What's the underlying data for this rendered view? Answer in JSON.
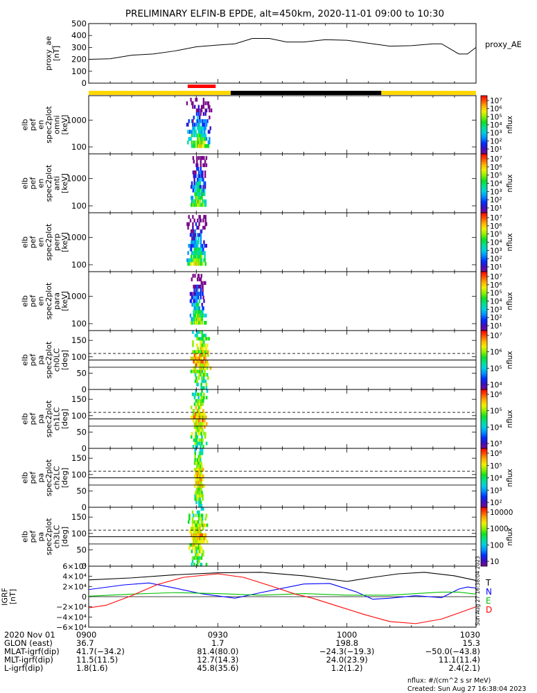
{
  "title": "PRELIMINARY ELFIN-B EPDE, alt=450km, 2020-11-01 09:00 to 10:30",
  "colors": {
    "fg": "#000000",
    "ygg_yellow": "#FFD700",
    "ygg_black": "#000000",
    "red_marker": "#FF0000",
    "T": "#000000",
    "N": "#0000FF",
    "E": "#00C000",
    "D": "#FF0000"
  },
  "colorbar_colors": [
    "#7a0a8a",
    "#3a10c0",
    "#0030ff",
    "#0090ff",
    "#00d0e0",
    "#00e090",
    "#10e020",
    "#90f000",
    "#f0f000",
    "#ffb000",
    "#ff5000",
    "#ff0000"
  ],
  "chart_data": [
    {
      "id": "proxy_ae",
      "type": "line",
      "ylabel": [
        "proxy_ae",
        "[nT]"
      ],
      "side_label": "proxy_AE",
      "yticks": [
        "500",
        "400",
        "300",
        "200",
        "100",
        "0"
      ],
      "ylim": [
        0,
        500
      ],
      "x": [
        0,
        5,
        10,
        15,
        20,
        25,
        30,
        34,
        38,
        42,
        46,
        50,
        55,
        60,
        65,
        70,
        75,
        80,
        82,
        86,
        88,
        90
      ],
      "values": [
        200,
        205,
        235,
        245,
        270,
        305,
        320,
        330,
        375,
        375,
        345,
        345,
        365,
        360,
        335,
        310,
        315,
        330,
        330,
        245,
        245,
        300
      ]
    },
    {
      "id": "orbit_bar",
      "type": "bar",
      "segments": [
        {
          "from": 0,
          "to": 33,
          "color": "yellow"
        },
        {
          "from": 33,
          "to": 68,
          "color": "black"
        },
        {
          "from": 68,
          "to": 90,
          "color": "yellow"
        }
      ],
      "science_zone": [
        23,
        29.5
      ]
    },
    {
      "id": "en_omni",
      "type": "heatmap",
      "ylabel": [
        "elb",
        "pef",
        "en",
        "spec2plot",
        "omni",
        "[keV]"
      ],
      "yticks": [
        "1000",
        "100"
      ],
      "colorbar_labels": [
        "10⁷",
        "10⁶",
        "10⁵",
        "10⁴",
        "10³",
        "10²",
        "10¹"
      ],
      "clabel": "nflux",
      "time_range": [
        22.7,
        28.6
      ]
    },
    {
      "id": "en_anti",
      "type": "heatmap",
      "ylabel": [
        "elb",
        "pef",
        "en",
        "spec2plot",
        "anti",
        "[keV]"
      ],
      "yticks": [
        "1000",
        "100"
      ],
      "colorbar_labels": [
        "10⁷",
        "10⁶",
        "10⁵",
        "10⁴",
        "10³",
        "10²",
        "10¹"
      ],
      "clabel": "nflux",
      "time_range": [
        23.6,
        27.4
      ]
    },
    {
      "id": "en_perp",
      "type": "heatmap",
      "ylabel": [
        "elb",
        "pef",
        "en",
        "spec2plot",
        "perp",
        "[keV]"
      ],
      "yticks": [
        "1000",
        "100"
      ],
      "colorbar_labels": [
        "10⁷",
        "10⁶",
        "10⁵",
        "10⁴",
        "10³",
        "10²",
        "10¹"
      ],
      "clabel": "nflux",
      "time_range": [
        22.8,
        27.6
      ]
    },
    {
      "id": "en_para",
      "type": "heatmap",
      "ylabel": [
        "elb",
        "pef",
        "en",
        "spec2plot",
        "para",
        "[keV]"
      ],
      "yticks": [
        "1000",
        "100"
      ],
      "colorbar_labels": [
        "10⁷",
        "10⁶",
        "10⁵",
        "10⁴",
        "10³",
        "10²",
        "10¹"
      ],
      "clabel": "nflux",
      "time_range": [
        23.4,
        27.3
      ]
    },
    {
      "id": "pa_ch0",
      "type": "heatmap",
      "ylabel": [
        "elb",
        "pef",
        "pa",
        "spec2plot",
        "ch0LC",
        "[deg]"
      ],
      "yticks": [
        "150",
        "100",
        "50",
        "0"
      ],
      "ylim": [
        0,
        180
      ],
      "lines": {
        "dashed": 110,
        "solid": [
          90,
          68
        ]
      },
      "colorbar_labels": [
        "10⁷",
        "10⁶",
        "10⁵",
        "10⁴"
      ],
      "clabel": "nflux",
      "time_range": [
        23.5,
        28.6
      ]
    },
    {
      "id": "pa_ch1",
      "type": "heatmap",
      "ylabel": [
        "elb",
        "pef",
        "pa",
        "spec2plot",
        "ch1LC",
        "[deg]"
      ],
      "yticks": [
        "150",
        "100",
        "50",
        "0"
      ],
      "ylim": [
        0,
        180
      ],
      "lines": {
        "dashed": 110,
        "solid": [
          90,
          68
        ]
      },
      "colorbar_labels": [
        "10⁶",
        "10⁵",
        "10⁴",
        "10³"
      ],
      "clabel": "nflux",
      "time_range": [
        23.6,
        27.6
      ]
    },
    {
      "id": "pa_ch2",
      "type": "heatmap",
      "ylabel": [
        "elb",
        "pef",
        "pa",
        "spec2plot",
        "ch2LC",
        "[deg]"
      ],
      "yticks": [
        "150",
        "100",
        "50",
        "0"
      ],
      "ylim": [
        0,
        180
      ],
      "lines": {
        "dashed": 110,
        "solid": [
          90,
          68
        ]
      },
      "colorbar_labels": [
        "10⁶",
        "10⁵",
        "10⁴",
        "10³",
        "10²"
      ],
      "clabel": "nflux",
      "time_range": [
        24.4,
        26.8
      ]
    },
    {
      "id": "pa_ch3",
      "type": "heatmap",
      "ylabel": [
        "elb",
        "pef",
        "pa",
        "spec2plot",
        "ch3LC",
        "[deg]"
      ],
      "yticks": [
        "150",
        "100",
        "50",
        "0"
      ],
      "ylim": [
        0,
        180
      ],
      "lines": {
        "dashed": 110,
        "solid": [
          90,
          68
        ]
      },
      "colorbar_labels": [
        "10000",
        "1000",
        "100",
        "10"
      ],
      "clabel": "nflux",
      "time_range": [
        22.9,
        27.8
      ]
    },
    {
      "id": "igrf",
      "type": "line",
      "ylabel": [
        "IGRF",
        "[nT]"
      ],
      "yticks": [
        "6×10⁴",
        "4×10⁴",
        "2×10⁴",
        "0",
        "−2×10⁴",
        "−4×10⁴",
        "−6×10⁴"
      ],
      "ylim": [
        -60000,
        60000
      ],
      "side_labels": [
        "T",
        "N",
        "E",
        "D"
      ],
      "series": [
        {
          "name": "T",
          "x": [
            0,
            10,
            20,
            30,
            40,
            50,
            60,
            66,
            72,
            78,
            85,
            90
          ],
          "values": [
            33000,
            37000,
            43000,
            47000,
            48000,
            41000,
            30000,
            38000,
            45000,
            48000,
            41000,
            32000
          ]
        },
        {
          "name": "N",
          "x": [
            0,
            8,
            14,
            20,
            26,
            34,
            40,
            50,
            56,
            62,
            66,
            70,
            76,
            82,
            86,
            88,
            90
          ],
          "values": [
            14000,
            23000,
            27000,
            17000,
            6000,
            -3000,
            8000,
            25000,
            26000,
            10000,
            -5000,
            -3000,
            2000,
            -2000,
            15000,
            19000,
            17000
          ]
        },
        {
          "name": "E",
          "x": [
            0,
            10,
            20,
            30,
            40,
            50,
            60,
            65,
            70,
            76,
            82,
            86,
            90
          ],
          "values": [
            1000,
            5000,
            8000,
            6000,
            3000,
            6000,
            3000,
            3000,
            3000,
            6000,
            9000,
            9000,
            5000
          ]
        },
        {
          "name": "D",
          "x": [
            0,
            4,
            10,
            16,
            22,
            30,
            36,
            42,
            48,
            52,
            58,
            64,
            70,
            76,
            82,
            86,
            90
          ],
          "values": [
            -22000,
            -17000,
            2000,
            24000,
            38000,
            45000,
            38000,
            22000,
            5000,
            -3000,
            -19000,
            -35000,
            -49000,
            -53000,
            -44000,
            -32000,
            -20000
          ]
        }
      ]
    }
  ],
  "side_stamp": "Sun Aug 27 16:38:04 2023",
  "x_axis": {
    "rows": [
      {
        "label": "2020 Nov 01",
        "values": [
          "0900",
          "0930",
          "1000",
          "1030"
        ]
      },
      {
        "label": "GLON (east)",
        "values": [
          "36.7",
          "1.7",
          "198.8",
          "15.3"
        ]
      },
      {
        "label": "MLAT-igrf(dip)",
        "values": [
          "41.7(−34.2)",
          "81.4(80.0)",
          "−24.3(−19.3)",
          "−50.0(−43.8)"
        ]
      },
      {
        "label": "MLT-igrf(dip)",
        "values": [
          "11.5(11.5)",
          "12.7(14.3)",
          "24.0(23.9)",
          "11.1(11.4)"
        ]
      },
      {
        "label": "L-igrf(dip)",
        "values": [
          "1.8(1.6)",
          "45.8(35.6)",
          "1.2(1.2)",
          "2.4(2.1)"
        ]
      }
    ]
  },
  "footer": {
    "units": "nflux: #/(cm^2 s sr MeV)",
    "created": "Created: Sun Aug 27 16:38:04 2023"
  }
}
